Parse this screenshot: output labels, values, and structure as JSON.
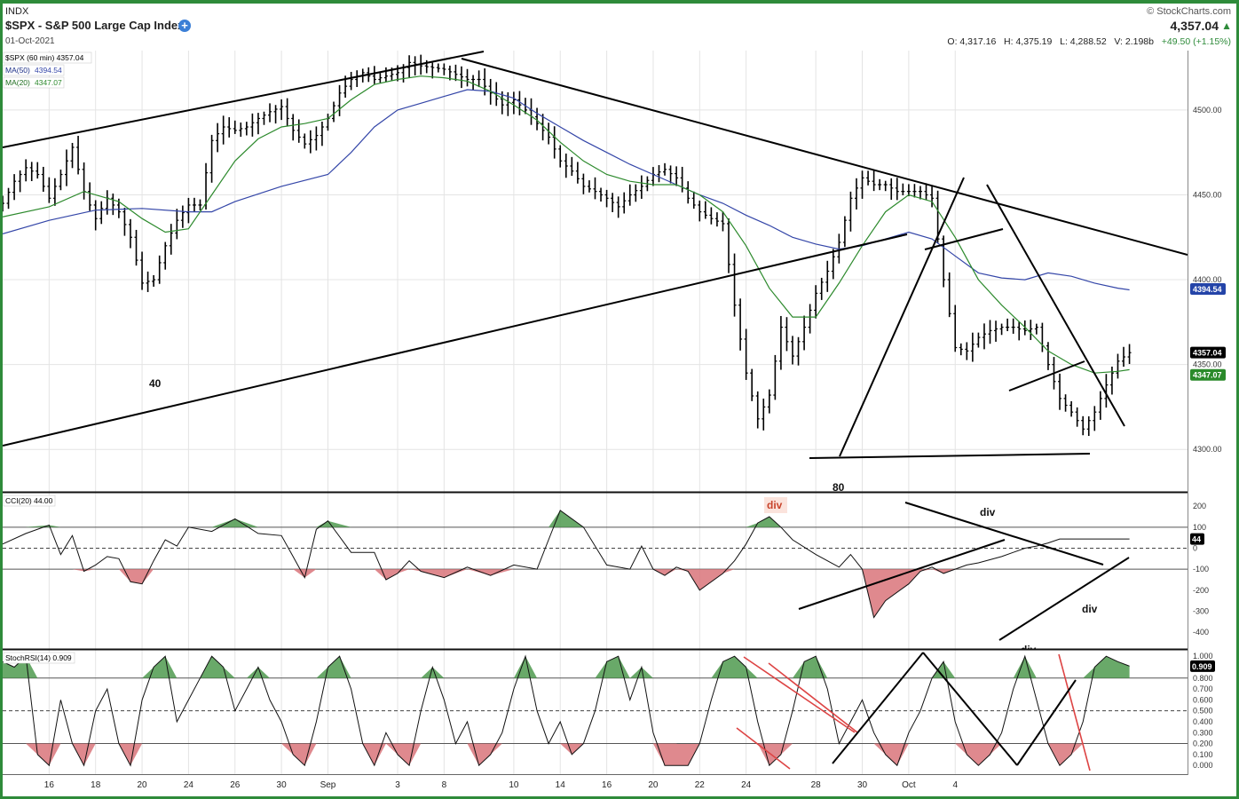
{
  "header": {
    "exchange": "INDX",
    "title": "$SPX - S&P 500 Large Cap Index",
    "date": "01-Oct-2021",
    "copyright": "© StockCharts.com",
    "last_price": "4,357.04",
    "open": "O: 4,317.16",
    "high": "H: 4,375.19",
    "low": "L: 4,288.52",
    "volume": "V: 2.198b",
    "change": "+49.50 (+1.15%)"
  },
  "legend": {
    "price": "$SPX (60 min) 4357.04",
    "ma50_name": "MA(50)",
    "ma50_value": "4394.54",
    "ma20_name": "MA(20)",
    "ma20_value": "4347.07",
    "cci": "CCI(20) 44.00",
    "stochrsi": "StochRSI(14) 0.909"
  },
  "annotations": {
    "label_40": "40",
    "label_80": "80",
    "div_cci_top": "div",
    "div_cci_mid": "div",
    "div_cci_low": "div",
    "div_cci_bottom": "div"
  },
  "colors": {
    "frame": "#2e8b3a",
    "ma50": "#3446a8",
    "ma20": "#2d8a2d",
    "pos_fill": "#4f9a4f",
    "neg_fill": "#d9747a",
    "price_pill": "#000000",
    "ma50_pill": "#2444a8",
    "ma20_pill": "#2a8a2a"
  },
  "chart_data": [
    {
      "type": "ohlc",
      "panel": "price",
      "ylim": [
        4275,
        4535
      ],
      "yticks": [
        4300,
        4350,
        4400,
        4450,
        4500
      ],
      "ytick_labels": [
        "4300.00",
        "4350.00",
        "4400.00",
        "4450.00",
        "4500.00"
      ],
      "right_labels": [
        {
          "name": "MA(50)",
          "value": "4394.54"
        },
        {
          "name": "$SPX",
          "value": "4357.04"
        },
        {
          "name": "MA(20)",
          "value": "4347.07"
        }
      ],
      "x_axis": {
        "domain_days": [
          0,
          51
        ],
        "tick_days": [
          2,
          4,
          6,
          8,
          10,
          12,
          14,
          17,
          19,
          22,
          24,
          26,
          28,
          30,
          32,
          35,
          37,
          39,
          41
        ],
        "tick_labels": [
          "16",
          "18",
          "20",
          "24",
          "26",
          "30",
          "Sep",
          "3",
          "8",
          "10",
          "14",
          "16",
          "20",
          "22",
          "24",
          "28",
          "30",
          "Oct",
          "4"
        ]
      },
      "price_path": [
        [
          0,
          4445
        ],
        [
          0.5,
          4458
        ],
        [
          1,
          4466
        ],
        [
          1.5,
          4462
        ],
        [
          2,
          4448
        ],
        [
          2.5,
          4462
        ],
        [
          3,
          4478
        ],
        [
          3.5,
          4452
        ],
        [
          4,
          4436
        ],
        [
          4.5,
          4448
        ],
        [
          5,
          4440
        ],
        [
          5.5,
          4425
        ],
        [
          6,
          4398
        ],
        [
          6.5,
          4400
        ],
        [
          7,
          4420
        ],
        [
          7.5,
          4435
        ],
        [
          8,
          4444
        ],
        [
          8.5,
          4444
        ],
        [
          9,
          4482
        ],
        [
          9.5,
          4490
        ],
        [
          10,
          4488
        ],
        [
          10.5,
          4490
        ],
        [
          11,
          4495
        ],
        [
          11.5,
          4499
        ],
        [
          12,
          4502
        ],
        [
          12.5,
          4488
        ],
        [
          13,
          4480
        ],
        [
          13.5,
          4485
        ],
        [
          14,
          4495
        ],
        [
          14.5,
          4510
        ],
        [
          15,
          4518
        ],
        [
          15.5,
          4522
        ],
        [
          16,
          4518
        ],
        [
          16.5,
          4520
        ],
        [
          17,
          4522
        ],
        [
          17.5,
          4528
        ],
        [
          18,
          4526
        ],
        [
          18.5,
          4525
        ],
        [
          19,
          4524
        ],
        [
          19.5,
          4521
        ],
        [
          20,
          4518
        ],
        [
          20.5,
          4518
        ],
        [
          21,
          4510
        ],
        [
          21.5,
          4503
        ],
        [
          22,
          4506
        ],
        [
          22.5,
          4500
        ],
        [
          23,
          4492
        ],
        [
          23.5,
          4484
        ],
        [
          24,
          4470
        ],
        [
          24.5,
          4464
        ],
        [
          25,
          4455
        ],
        [
          25.5,
          4452
        ],
        [
          26,
          4448
        ],
        [
          26.5,
          4443
        ],
        [
          27,
          4450
        ],
        [
          27.5,
          4455
        ],
        [
          28,
          4462
        ],
        [
          28.5,
          4465
        ],
        [
          29,
          4460
        ],
        [
          29.5,
          4448
        ],
        [
          30,
          4440
        ],
        [
          30.5,
          4436
        ],
        [
          31,
          4433
        ],
        [
          31.5,
          4385
        ],
        [
          32,
          4345
        ],
        [
          32.5,
          4318
        ],
        [
          33,
          4332
        ],
        [
          33.5,
          4372
        ],
        [
          34,
          4355
        ],
        [
          34.5,
          4372
        ],
        [
          35,
          4392
        ],
        [
          35.5,
          4405
        ],
        [
          36,
          4422
        ],
        [
          36.5,
          4448
        ],
        [
          37,
          4460
        ],
        [
          37.5,
          4456
        ],
        [
          38,
          4456
        ],
        [
          38.5,
          4452
        ],
        [
          39,
          4452
        ],
        [
          39.5,
          4452
        ],
        [
          40,
          4448
        ],
        [
          40.5,
          4400
        ],
        [
          41,
          4360
        ],
        [
          41.5,
          4358
        ],
        [
          42,
          4366
        ],
        [
          42.5,
          4370
        ],
        [
          43,
          4372
        ],
        [
          43.5,
          4372
        ],
        [
          44,
          4370
        ],
        [
          44.5,
          4372
        ],
        [
          45,
          4350
        ],
        [
          45.5,
          4330
        ],
        [
          46,
          4322
        ],
        [
          46.5,
          4312
        ],
        [
          47,
          4322
        ],
        [
          47.5,
          4338
        ],
        [
          48,
          4352
        ],
        [
          48.5,
          4357
        ]
      ],
      "ma20": [
        [
          0,
          4437
        ],
        [
          2,
          4443
        ],
        [
          3.5,
          4452
        ],
        [
          5,
          4446
        ],
        [
          6,
          4436
        ],
        [
          7,
          4428
        ],
        [
          8,
          4430
        ],
        [
          9,
          4450
        ],
        [
          10,
          4470
        ],
        [
          11,
          4483
        ],
        [
          12,
          4490
        ],
        [
          13,
          4492
        ],
        [
          14,
          4495
        ],
        [
          15,
          4506
        ],
        [
          16,
          4515
        ],
        [
          17,
          4518
        ],
        [
          18,
          4520
        ],
        [
          19,
          4519
        ],
        [
          20,
          4517
        ],
        [
          21,
          4511
        ],
        [
          22,
          4503
        ],
        [
          23,
          4494
        ],
        [
          24,
          4481
        ],
        [
          25,
          4470
        ],
        [
          26,
          4462
        ],
        [
          27,
          4458
        ],
        [
          28,
          4456
        ],
        [
          29,
          4456
        ],
        [
          30,
          4450
        ],
        [
          31,
          4440
        ],
        [
          32,
          4420
        ],
        [
          33,
          4395
        ],
        [
          34,
          4378
        ],
        [
          35,
          4378
        ],
        [
          36,
          4398
        ],
        [
          37,
          4420
        ],
        [
          38,
          4440
        ],
        [
          39,
          4450
        ],
        [
          40,
          4446
        ],
        [
          41,
          4425
        ],
        [
          42,
          4400
        ],
        [
          43,
          4385
        ],
        [
          44,
          4372
        ],
        [
          45,
          4358
        ],
        [
          46,
          4350
        ],
        [
          47,
          4345
        ],
        [
          48,
          4346
        ],
        [
          48.5,
          4347
        ]
      ],
      "ma50": [
        [
          0,
          4427
        ],
        [
          2,
          4435
        ],
        [
          4,
          4441
        ],
        [
          6,
          4442
        ],
        [
          8,
          4440
        ],
        [
          9,
          4440
        ],
        [
          10,
          4446
        ],
        [
          12,
          4455
        ],
        [
          14,
          4462
        ],
        [
          15,
          4475
        ],
        [
          16,
          4490
        ],
        [
          17,
          4500
        ],
        [
          18,
          4504
        ],
        [
          19,
          4508
        ],
        [
          20,
          4512
        ],
        [
          21,
          4511
        ],
        [
          22,
          4507
        ],
        [
          23,
          4498
        ],
        [
          24,
          4490
        ],
        [
          25,
          4482
        ],
        [
          26,
          4475
        ],
        [
          27,
          4468
        ],
        [
          28,
          4462
        ],
        [
          29,
          4456
        ],
        [
          30,
          4450
        ],
        [
          31,
          4445
        ],
        [
          32,
          4438
        ],
        [
          33,
          4432
        ],
        [
          34,
          4425
        ],
        [
          35,
          4421
        ],
        [
          36,
          4418
        ],
        [
          37,
          4420
        ],
        [
          38,
          4424
        ],
        [
          39,
          4428
        ],
        [
          40,
          4424
        ],
        [
          41,
          4414
        ],
        [
          42,
          4404
        ],
        [
          43,
          4401
        ],
        [
          44,
          4400
        ],
        [
          45,
          4404
        ],
        [
          46,
          4402
        ],
        [
          47,
          4398
        ],
        [
          48,
          4395
        ],
        [
          48.5,
          4394
        ]
      ]
    },
    {
      "type": "line",
      "panel": "cci",
      "name": "CCI(20)",
      "ylim": [
        -480,
        260
      ],
      "yticks": [
        200,
        100,
        0,
        -100,
        -200,
        -300,
        -400
      ],
      "ytick_labels": [
        "200",
        "100",
        "0",
        "-100",
        "-200",
        "-300",
        "-400"
      ],
      "overbought": 100,
      "oversold": -100,
      "last_label": "44",
      "x": [
        0,
        1,
        2,
        2.5,
        3,
        3.5,
        4,
        4.5,
        5,
        5.5,
        6,
        6.5,
        7,
        7.5,
        8,
        9,
        10,
        11,
        12,
        12.5,
        13,
        13.5,
        14,
        15,
        16,
        16.5,
        17,
        17.5,
        18,
        19,
        20,
        21,
        22,
        23,
        23.5,
        24,
        25,
        26,
        27,
        27.5,
        28,
        28.5,
        29,
        29.5,
        30,
        31,
        31.5,
        32,
        32.5,
        33,
        33.5,
        34,
        35,
        36,
        36.5,
        37,
        37.5,
        38,
        39,
        39.5,
        40,
        40.5,
        41,
        41.5,
        42,
        43,
        43.5,
        44,
        44.5,
        45,
        45.5,
        46,
        46.5,
        47,
        47.5,
        48,
        48.5
      ],
      "values": [
        20,
        70,
        110,
        -30,
        60,
        -110,
        -80,
        -40,
        -50,
        -160,
        -170,
        -60,
        40,
        10,
        100,
        80,
        140,
        70,
        60,
        -40,
        -140,
        90,
        130,
        -20,
        -20,
        -150,
        -120,
        -60,
        -110,
        -140,
        -90,
        -130,
        -80,
        -100,
        40,
        180,
        100,
        -80,
        -100,
        10,
        -100,
        -130,
        -90,
        -110,
        -200,
        -120,
        -60,
        20,
        120,
        150,
        100,
        40,
        -30,
        -90,
        -30,
        -100,
        -330,
        -250,
        -170,
        -110,
        -90,
        -120,
        -100,
        -80,
        -70,
        -40,
        -20,
        0,
        10,
        25,
        44,
        44,
        44,
        44,
        44,
        44,
        44
      ]
    },
    {
      "type": "line",
      "panel": "stochrsi",
      "name": "StochRSI(14)",
      "ylim": [
        -0.08,
        1.05
      ],
      "yticks": [
        1.0,
        0.9,
        0.8,
        0.7,
        0.6,
        0.5,
        0.4,
        0.3,
        0.2,
        0.1,
        0.0
      ],
      "ytick_labels": [
        "1.000",
        "0.900",
        "0.800",
        "0.700",
        "0.600",
        "0.500",
        "0.400",
        "0.300",
        "0.200",
        "0.100",
        "0.000"
      ],
      "overbought": 0.8,
      "oversold": 0.2,
      "last_label": "0.909",
      "x": [
        0,
        0.5,
        1,
        1.5,
        2,
        2.5,
        3,
        3.5,
        4,
        4.5,
        5,
        5.5,
        6,
        6.5,
        7,
        7.5,
        8,
        8.5,
        9,
        9.5,
        10,
        10.5,
        11,
        11.5,
        12,
        12.5,
        13,
        13.5,
        14,
        14.5,
        15,
        15.5,
        16,
        16.5,
        17,
        17.5,
        18,
        18.5,
        19,
        19.5,
        20,
        20.5,
        21,
        21.5,
        22,
        22.5,
        23,
        23.5,
        24,
        24.5,
        25,
        25.5,
        26,
        26.5,
        27,
        27.5,
        28,
        28.5,
        29,
        29.5,
        30,
        30.5,
        31,
        31.5,
        32,
        32.5,
        33,
        33.5,
        34,
        34.5,
        35,
        35.5,
        36,
        36.5,
        37,
        37.5,
        38,
        38.5,
        39,
        39.5,
        40,
        40.5,
        41,
        41.5,
        42,
        42.5,
        43,
        43.5,
        44,
        44.5,
        45,
        45.5,
        46,
        46.5,
        47,
        47.5,
        48,
        48.5
      ],
      "values": [
        0.95,
        0.9,
        1.0,
        0.1,
        0.0,
        0.6,
        0.2,
        0.0,
        0.5,
        0.7,
        0.2,
        0.0,
        0.6,
        0.9,
        1.0,
        0.4,
        0.6,
        0.8,
        1.0,
        0.9,
        0.5,
        0.7,
        0.9,
        0.6,
        0.4,
        0.1,
        0.0,
        0.4,
        0.9,
        1.0,
        0.7,
        0.2,
        0.0,
        0.3,
        0.1,
        0.0,
        0.5,
        0.9,
        0.6,
        0.2,
        0.4,
        0.0,
        0.1,
        0.3,
        0.7,
        1.0,
        0.5,
        0.2,
        0.4,
        0.1,
        0.2,
        0.5,
        0.95,
        1.0,
        0.6,
        0.9,
        0.3,
        0.0,
        0.0,
        0.0,
        0.2,
        0.6,
        0.95,
        1.0,
        0.9,
        0.4,
        0.0,
        0.1,
        0.5,
        0.95,
        1.0,
        0.7,
        0.2,
        0.4,
        0.6,
        0.3,
        0.1,
        0.0,
        0.3,
        0.5,
        0.8,
        0.95,
        0.4,
        0.1,
        0.0,
        0.1,
        0.3,
        0.7,
        1.0,
        0.6,
        0.2,
        0.0,
        0.1,
        0.4,
        0.9,
        1.0,
        0.95,
        0.909
      ]
    }
  ]
}
